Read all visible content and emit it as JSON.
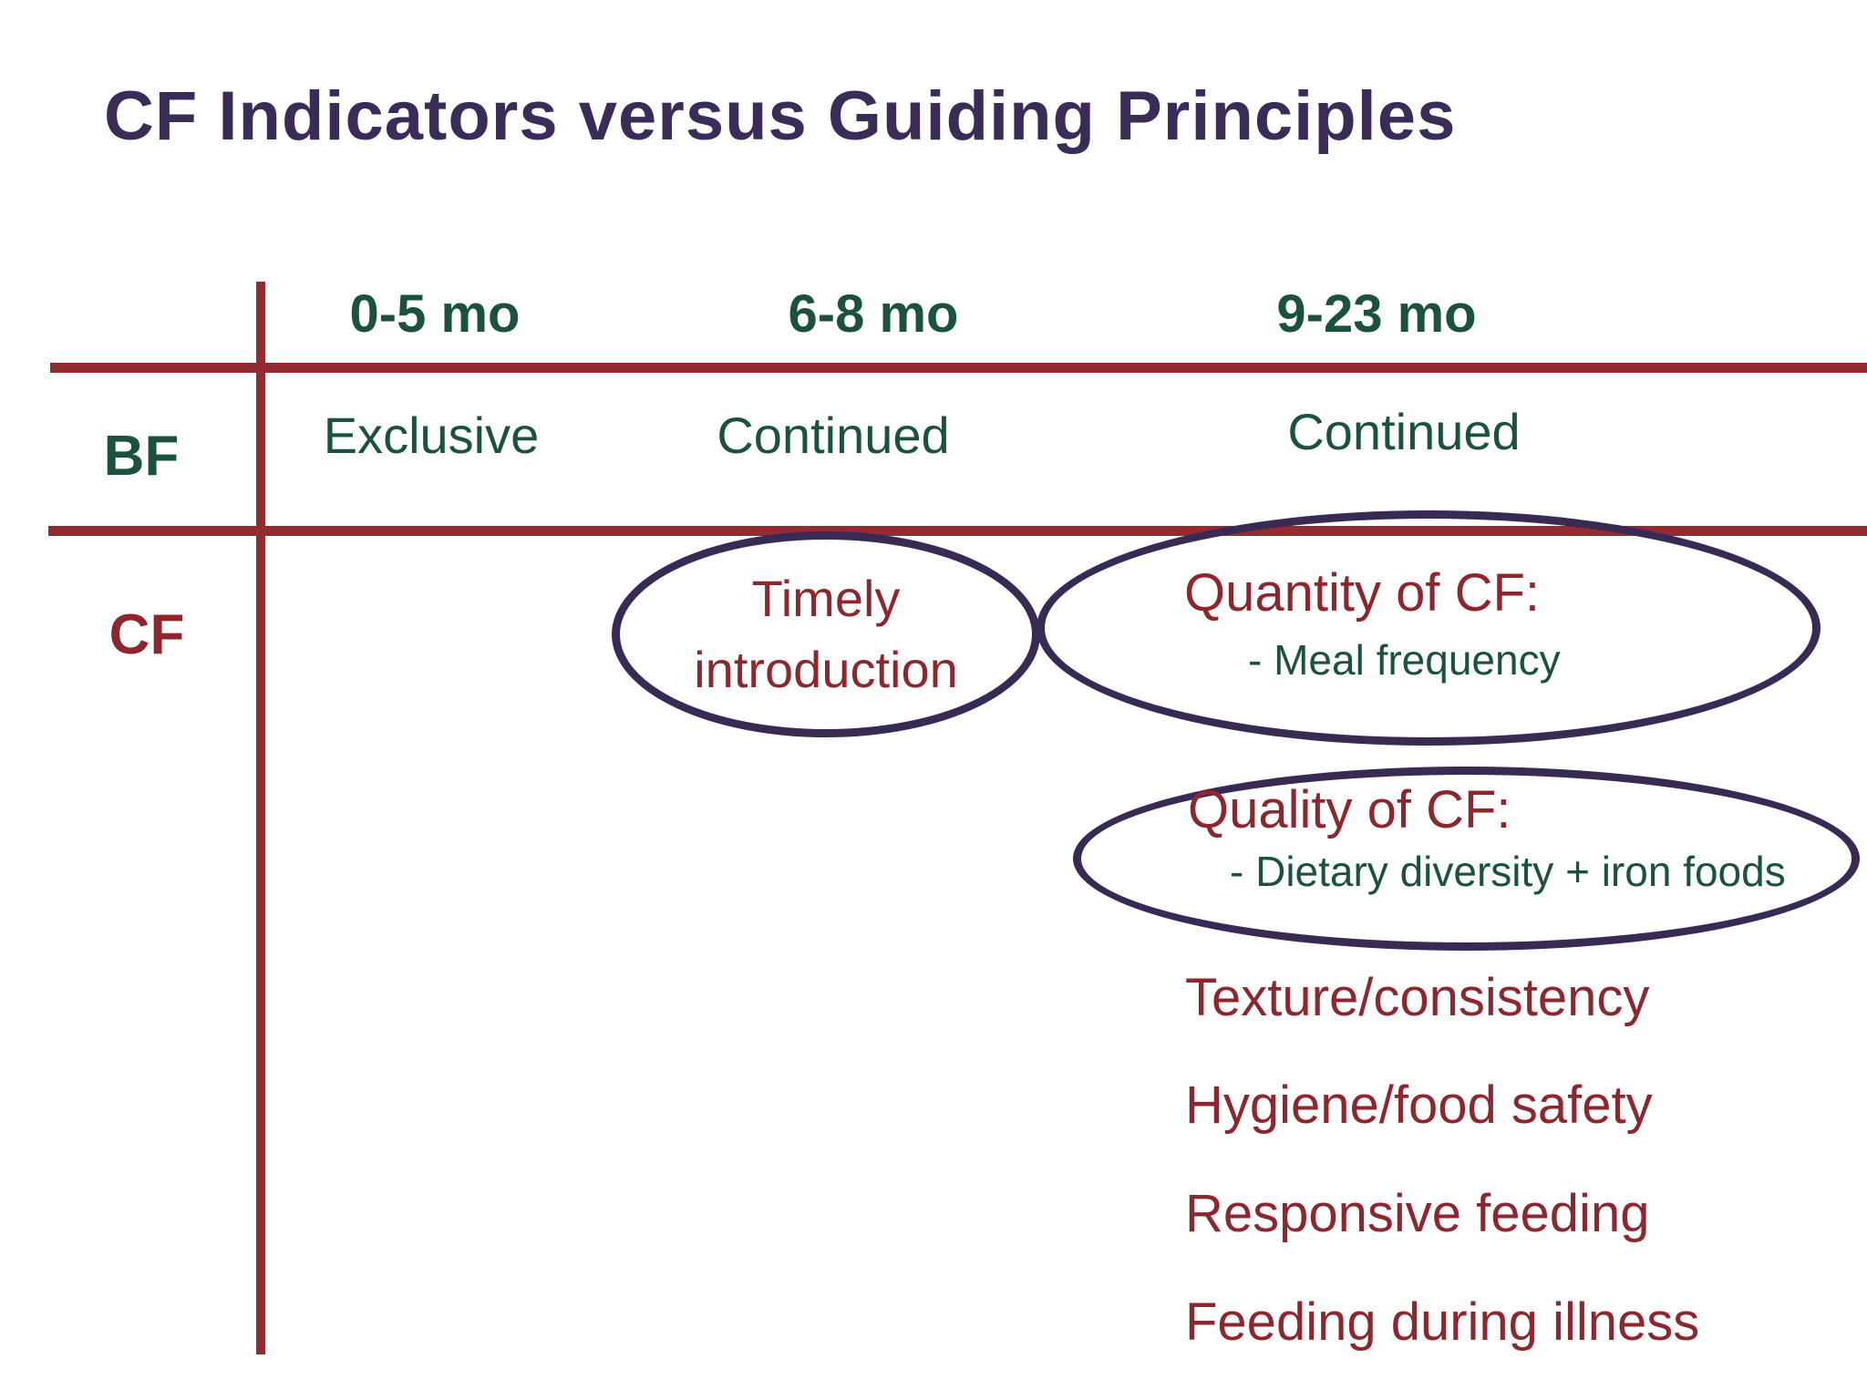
{
  "title": "CF Indicators versus Guiding Principles",
  "table": {
    "columns": [
      "0-5 mo",
      "6-8 mo",
      "9-23 mo"
    ],
    "rows": [
      {
        "label": "BF",
        "cells": [
          "Exclusive",
          "Continued",
          "Continued"
        ]
      },
      {
        "label": "CF"
      }
    ]
  },
  "cf": {
    "timely": {
      "line1": "Timely",
      "line2": "introduction"
    },
    "quantity": {
      "title": "Quantity of CF:",
      "bullet": "- Meal frequency"
    },
    "quality": {
      "title": "Quality of CF:",
      "bullet": "- Dietary diversity + iron foods"
    },
    "items": [
      "Texture/consistency",
      "Hygiene/food safety",
      "Responsive feeding",
      "Feeding during illness"
    ]
  },
  "colors": {
    "title_purple": "#3b2b58",
    "ellipse_purple": "#382a55",
    "table_line_maroon": "#942b31",
    "text_green": "#1a5140",
    "text_red": "#8e262e",
    "background": "#ffffff"
  }
}
